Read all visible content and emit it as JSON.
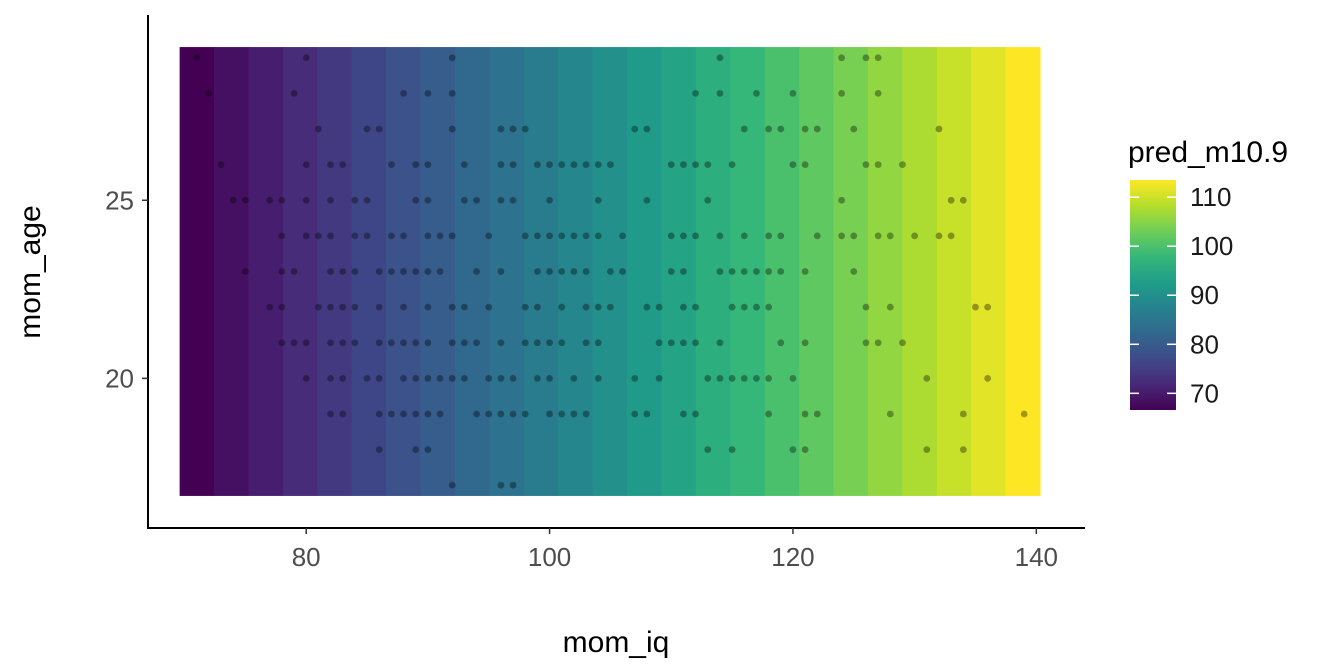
{
  "chart_data": {
    "type": "heatmap",
    "title": "",
    "xlabel": "mom_iq",
    "ylabel": "mom_age",
    "xlim": [
      67,
      144
    ],
    "ylim": [
      15.8,
      30.2
    ],
    "x_ticks": [
      80,
      100,
      120,
      140
    ],
    "x_tick_labels": [
      "80",
      "100",
      "120",
      "140"
    ],
    "y_ticks": [
      20,
      25
    ],
    "y_tick_labels": [
      "20",
      "25"
    ],
    "heatmap": {
      "x_range": [
        69.6,
        140.3
      ],
      "y_range": [
        16.7,
        29.3
      ],
      "bands": 25,
      "fill_min": 66.6,
      "fill_max": 113.5,
      "palette": "viridis",
      "varies_along": "mom_iq"
    },
    "legend": {
      "title": "pred_m10.9",
      "position": "right",
      "ticks": [
        110,
        100,
        90,
        80,
        70
      ],
      "tick_labels": [
        "110",
        "100",
        "90",
        "80",
        "70"
      ],
      "range": [
        66.6,
        113.5
      ]
    },
    "colors": {
      "viridis": [
        "#440154",
        "#482878",
        "#3e4a89",
        "#31688e",
        "#26828e",
        "#1f9e89",
        "#35b779",
        "#6ece58",
        "#b5de2b",
        "#fde725"
      ],
      "point": "#000000",
      "axis": "#000000"
    },
    "points": {
      "opacity": 0.35,
      "x": [
        71,
        80,
        92,
        114,
        124,
        126,
        127,
        72,
        79,
        88,
        90,
        92,
        112,
        114,
        117,
        120,
        124,
        127,
        81,
        85,
        86,
        92,
        96,
        97,
        98,
        107,
        108,
        116,
        118,
        119,
        121,
        122,
        125,
        132,
        73,
        80,
        82,
        83,
        87,
        89,
        90,
        93,
        96,
        97,
        99,
        100,
        101,
        102,
        103,
        104,
        105,
        110,
        111,
        112,
        113,
        115,
        120,
        121,
        126,
        127,
        129,
        74,
        75,
        77,
        78,
        80,
        82,
        84,
        85,
        89,
        90,
        93,
        94,
        96,
        97,
        100,
        104,
        108,
        113,
        124,
        133,
        134,
        78,
        80,
        81,
        82,
        84,
        85,
        87,
        88,
        90,
        91,
        92,
        95,
        98,
        99,
        100,
        101,
        102,
        103,
        104,
        106,
        110,
        111,
        112,
        114,
        116,
        118,
        119,
        122,
        124,
        125,
        127,
        128,
        130,
        132,
        133,
        75,
        78,
        79,
        82,
        83,
        84,
        86,
        87,
        88,
        89,
        90,
        91,
        94,
        96,
        99,
        100,
        101,
        102,
        103,
        105,
        106,
        110,
        111,
        114,
        115,
        116,
        117,
        118,
        119,
        121,
        125,
        126,
        128,
        135,
        136,
        77,
        78,
        81,
        82,
        83,
        84,
        86,
        88,
        90,
        92,
        93,
        95,
        98,
        99,
        101,
        103,
        104,
        105,
        108,
        109,
        111,
        112,
        115,
        116,
        117,
        118,
        119,
        121,
        126,
        127,
        129,
        78,
        79,
        80,
        82,
        83,
        84,
        86,
        87,
        88,
        89,
        90,
        92,
        93,
        94,
        96,
        98,
        99,
        100,
        101,
        103,
        104,
        109,
        110,
        111,
        112,
        114,
        115,
        117,
        118,
        120,
        131,
        136,
        80,
        82,
        83,
        85,
        86,
        88,
        89,
        90,
        91,
        92,
        93,
        95,
        96,
        97,
        99,
        100,
        102,
        104,
        107,
        109,
        113,
        114,
        116,
        118,
        121,
        122,
        128,
        134,
        139,
        82,
        83,
        86,
        87,
        88,
        89,
        90,
        91,
        94,
        95,
        96,
        97,
        98,
        100,
        101,
        102,
        103,
        107,
        108,
        111,
        112,
        113,
        115,
        120,
        121,
        131,
        134,
        86,
        89,
        90,
        92,
        96,
        97,
        103,
        108,
        114,
        97,
        99,
        114
      ]
    }
  }
}
